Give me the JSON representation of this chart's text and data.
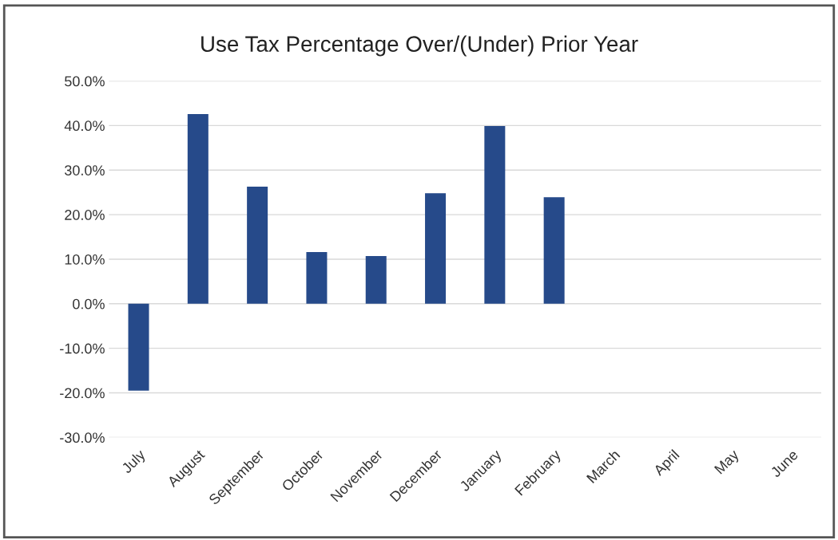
{
  "chart_data": {
    "type": "bar",
    "title": "Use Tax Percentage Over/(Under) Prior Year",
    "categories": [
      "July",
      "August",
      "September",
      "October",
      "November",
      "December",
      "January",
      "February",
      "March",
      "April",
      "May",
      "June"
    ],
    "values": [
      -19.5,
      42.6,
      26.3,
      11.6,
      10.7,
      24.8,
      39.9,
      23.9,
      null,
      null,
      null,
      null
    ],
    "color": "#264a8a",
    "ylim": [
      -30,
      50
    ],
    "yticks": [
      {
        "value": -30,
        "label": "-30.0%"
      },
      {
        "value": -20,
        "label": "-20.0%"
      },
      {
        "value": -10,
        "label": "-10.0%"
      },
      {
        "value": 0,
        "label": "0.0%"
      },
      {
        "value": 10,
        "label": "10.0%"
      },
      {
        "value": 20,
        "label": "20.0%"
      },
      {
        "value": 30,
        "label": "30.0%"
      },
      {
        "value": 40,
        "label": "40.0%"
      },
      {
        "value": 50,
        "label": "50.0%"
      }
    ],
    "grid": "y",
    "legend": false
  }
}
